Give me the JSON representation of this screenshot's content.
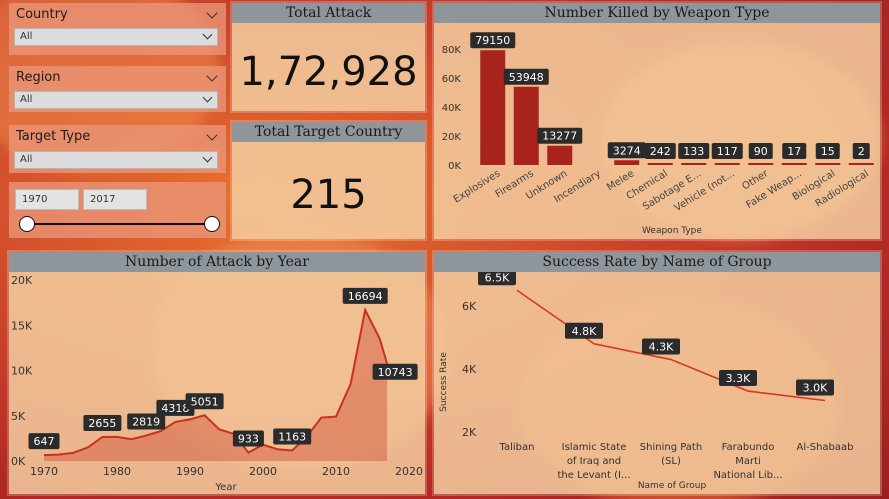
{
  "slicers": {
    "country": {
      "label": "Country",
      "value": "All"
    },
    "region": {
      "label": "Region",
      "value": "All"
    },
    "target_type": {
      "label": "Target Type",
      "value": "All"
    },
    "year_range": {
      "start": "1970",
      "end": "2017"
    }
  },
  "kpis": {
    "total_attack": {
      "title": "Total Attack",
      "value": "1,72,928"
    },
    "total_target_country": {
      "title": "Total Target Country",
      "value": "215"
    }
  },
  "chart_data": [
    {
      "id": "weapon",
      "type": "bar",
      "title": "Number Killed by Weapon Type",
      "xlabel": "Weapon Type",
      "ylabel": "",
      "categories": [
        "Explosives",
        "Firearms",
        "Unknown",
        "Incendiary",
        "Melee",
        "Chemical",
        "Sabotage E...",
        "Vehicle (not...",
        "Other",
        "Fake Weap...",
        "Biological",
        "Radiological"
      ],
      "values": [
        79150,
        53948,
        13277,
        null,
        3274,
        242,
        133,
        117,
        90,
        17,
        15,
        2
      ],
      "data_labels": [
        "79150",
        "53948",
        "13277",
        "",
        "3274",
        "242",
        "133",
        "117",
        "90",
        "17",
        "15",
        "2"
      ],
      "yticks": [
        "0K",
        "20K",
        "40K",
        "60K",
        "80K"
      ],
      "ylim": [
        0,
        80000
      ],
      "color": "#a8231c",
      "grid": false
    },
    {
      "id": "year",
      "type": "area",
      "title": "Number of Attack by Year",
      "xlabel": "Year",
      "ylabel": "",
      "x": [
        1970,
        1972,
        1974,
        1976,
        1978,
        1980,
        1982,
        1984,
        1986,
        1988,
        1990,
        1992,
        1994,
        1996,
        1998,
        2000,
        2002,
        2004,
        2006,
        2008,
        2010,
        2012,
        2014,
        2016,
        2017
      ],
      "y": [
        647,
        700,
        900,
        1500,
        2655,
        2660,
        2400,
        2819,
        3300,
        4318,
        4600,
        5051,
        3500,
        3000,
        933,
        1800,
        1300,
        1163,
        2700,
        4800,
        4900,
        8500,
        16694,
        13500,
        10743
      ],
      "labels": [
        {
          "x": 1970,
          "y": 647,
          "text": "647"
        },
        {
          "x": 1978,
          "y": 2655,
          "text": "2655"
        },
        {
          "x": 1984,
          "y": 2819,
          "text": "2819"
        },
        {
          "x": 1988,
          "y": 4318,
          "text": "4318"
        },
        {
          "x": 1992,
          "y": 5051,
          "text": "5051"
        },
        {
          "x": 1998,
          "y": 933,
          "text": "933"
        },
        {
          "x": 2004,
          "y": 1163,
          "text": "1163"
        },
        {
          "x": 2014,
          "y": 16694,
          "text": "16694"
        },
        {
          "x": 2017,
          "y": 10743,
          "text": "10743"
        }
      ],
      "xticks": [
        "1970",
        "1980",
        "1990",
        "2000",
        "2010",
        "2020"
      ],
      "yticks": [
        "0K",
        "5K",
        "10K",
        "15K",
        "20K"
      ],
      "xlim": [
        1970,
        2020
      ],
      "ylim": [
        0,
        20000
      ],
      "color": "#c8321f"
    },
    {
      "id": "group",
      "type": "line",
      "title": "Success Rate by Name of Group",
      "xlabel": "Name of Group",
      "ylabel": "Success Rate",
      "categories": [
        "Taliban",
        "Islamic State of Iraq and the Levant (I...",
        "Shining Path (SL)",
        "Farabundo Marti National Lib...",
        "Al-Shabaab"
      ],
      "category_lines": [
        [
          "Taliban"
        ],
        [
          "Islamic State",
          "of Iraq and",
          "the Levant (I..."
        ],
        [
          "Shining Path",
          "(SL)"
        ],
        [
          "Farabundo",
          "Marti",
          "National Lib..."
        ],
        [
          "Al-Shabaab"
        ]
      ],
      "values": [
        6500,
        4800,
        4300,
        3300,
        3000
      ],
      "data_labels": [
        "6.5K",
        "4.8K",
        "4.3K",
        "3.3K",
        "3.0K"
      ],
      "yticks": [
        "2K",
        "4K",
        "6K"
      ],
      "ylim": [
        2000,
        6500
      ],
      "color": "#d9371f"
    }
  ]
}
